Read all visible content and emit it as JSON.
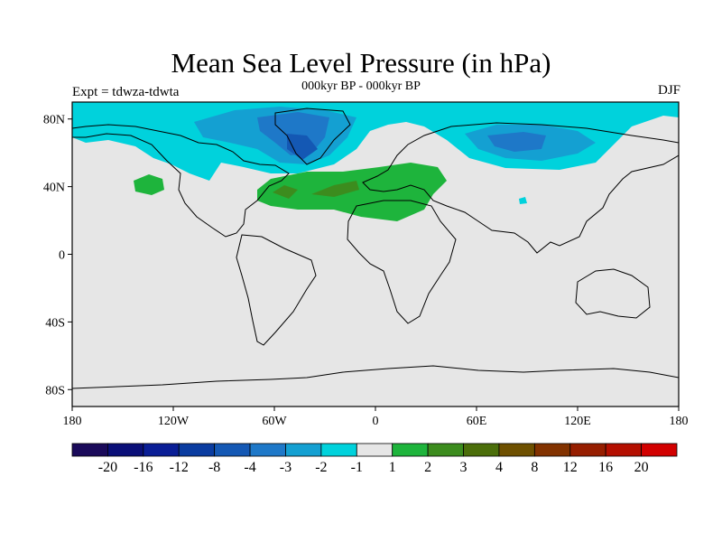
{
  "header": {
    "title": "Mean Sea Level Pressure (in hPa)",
    "subtitle": "000kyr BP - 000kyr BP",
    "experiment": "Expt = tdwza-tdwta",
    "season": "DJF"
  },
  "map": {
    "lon_labels": [
      "180",
      "120W",
      "60W",
      "0",
      "60E",
      "120E",
      "180"
    ],
    "lat_labels": [
      "80N",
      "40N",
      "0",
      "40S",
      "80S"
    ],
    "background_color": "#e6e6e6"
  },
  "colorbar": {
    "labels": [
      "-20",
      "-16",
      "-12",
      "-8",
      "-4",
      "-3",
      "-2",
      "-1",
      "1",
      "2",
      "3",
      "4",
      "8",
      "12",
      "16",
      "20"
    ],
    "colors": [
      "#1a0a5a",
      "#0a0f78",
      "#0a1e96",
      "#0a3ca0",
      "#1458b4",
      "#1e78c8",
      "#14a0d2",
      "#00d2dc",
      "#e6e6e6",
      "#1eb43c",
      "#3c8c1e",
      "#4b6e0a",
      "#6e5000",
      "#823200",
      "#961e00",
      "#b40f00",
      "#d20000"
    ]
  }
}
